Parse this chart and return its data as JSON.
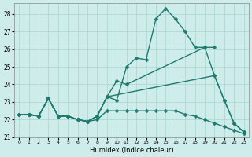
{
  "xlabel": "Humidex (Indice chaleur)",
  "xlim": [
    -0.5,
    23.5
  ],
  "ylim": [
    21.0,
    28.6
  ],
  "yticks": [
    21,
    22,
    23,
    24,
    25,
    26,
    27,
    28
  ],
  "xticks": [
    0,
    1,
    2,
    3,
    4,
    5,
    6,
    7,
    8,
    9,
    10,
    11,
    12,
    13,
    14,
    15,
    16,
    17,
    18,
    19,
    20,
    21,
    22,
    23
  ],
  "background_color": "#ceecea",
  "grid_color": "#a8d5d0",
  "line_color": "#1e7b6e",
  "line_width": 1.0,
  "marker": "D",
  "marker_size": 2.5,
  "series": [
    {
      "x": [
        0,
        1,
        2,
        3,
        4,
        5,
        6,
        7,
        8,
        9,
        10,
        11,
        12,
        13,
        14,
        15,
        16,
        17,
        18,
        19,
        20,
        21,
        22,
        23
      ],
      "y": [
        22.3,
        22.3,
        22.2,
        23.2,
        22.2,
        22.2,
        22.0,
        21.9,
        22.2,
        23.3,
        23.1,
        25.0,
        25.5,
        25.4,
        27.7,
        28.3,
        27.7,
        27.0,
        26.1,
        26.1,
        24.5,
        23.1,
        21.8,
        21.3
      ]
    },
    {
      "x": [
        0,
        1,
        2,
        3,
        4,
        5,
        6,
        7,
        8,
        9,
        10,
        11,
        19,
        20
      ],
      "y": [
        22.3,
        22.3,
        22.2,
        23.2,
        22.2,
        22.2,
        22.0,
        21.9,
        22.2,
        23.3,
        24.2,
        24.0,
        26.1,
        26.1
      ]
    },
    {
      "x": [
        0,
        1,
        2,
        3,
        4,
        5,
        6,
        7,
        8,
        9,
        20,
        21,
        22,
        23
      ],
      "y": [
        22.3,
        22.3,
        22.2,
        23.2,
        22.2,
        22.2,
        22.0,
        21.9,
        22.2,
        23.3,
        24.5,
        23.1,
        21.8,
        21.3
      ]
    },
    {
      "x": [
        0,
        1,
        2,
        3,
        4,
        5,
        6,
        7,
        8,
        9,
        10,
        11,
        12,
        13,
        14,
        15,
        16,
        17,
        18,
        19,
        20,
        21,
        22,
        23
      ],
      "y": [
        22.3,
        22.3,
        22.2,
        23.2,
        22.2,
        22.2,
        22.0,
        21.9,
        22.0,
        22.5,
        22.5,
        22.5,
        22.5,
        22.5,
        22.5,
        22.5,
        22.5,
        22.3,
        22.2,
        22.0,
        21.8,
        21.6,
        21.4,
        21.2
      ]
    }
  ]
}
